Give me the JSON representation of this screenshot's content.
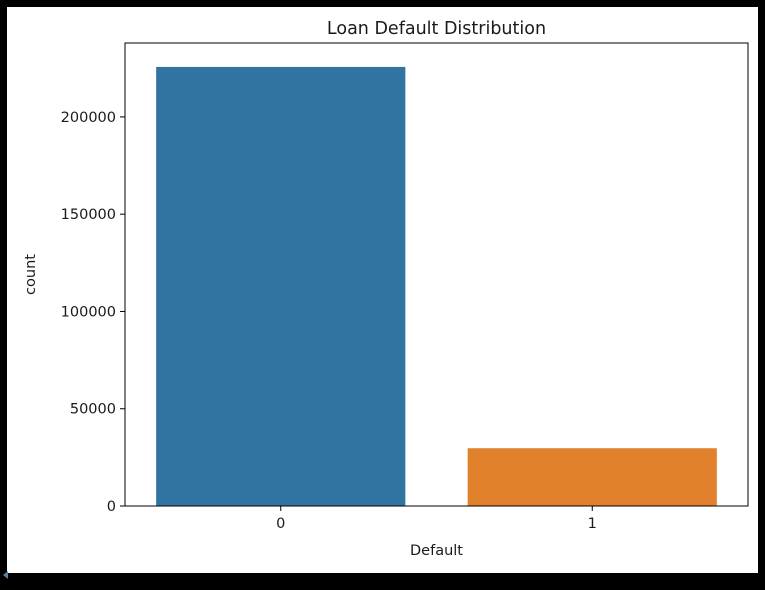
{
  "chart_data": {
    "type": "bar",
    "title": "Loan Default Distribution",
    "xlabel": "Default",
    "ylabel": "count",
    "categories": [
      "0",
      "1"
    ],
    "values": [
      225700,
      29700
    ],
    "colors": [
      "#3274a1",
      "#e1812c"
    ],
    "ylim": [
      0,
      238000
    ],
    "yticks": [
      0,
      50000,
      100000,
      150000,
      200000
    ],
    "ytick_labels": [
      "0",
      "50000",
      "100000",
      "150000",
      "200000"
    ],
    "grid": false,
    "legend": "none"
  }
}
